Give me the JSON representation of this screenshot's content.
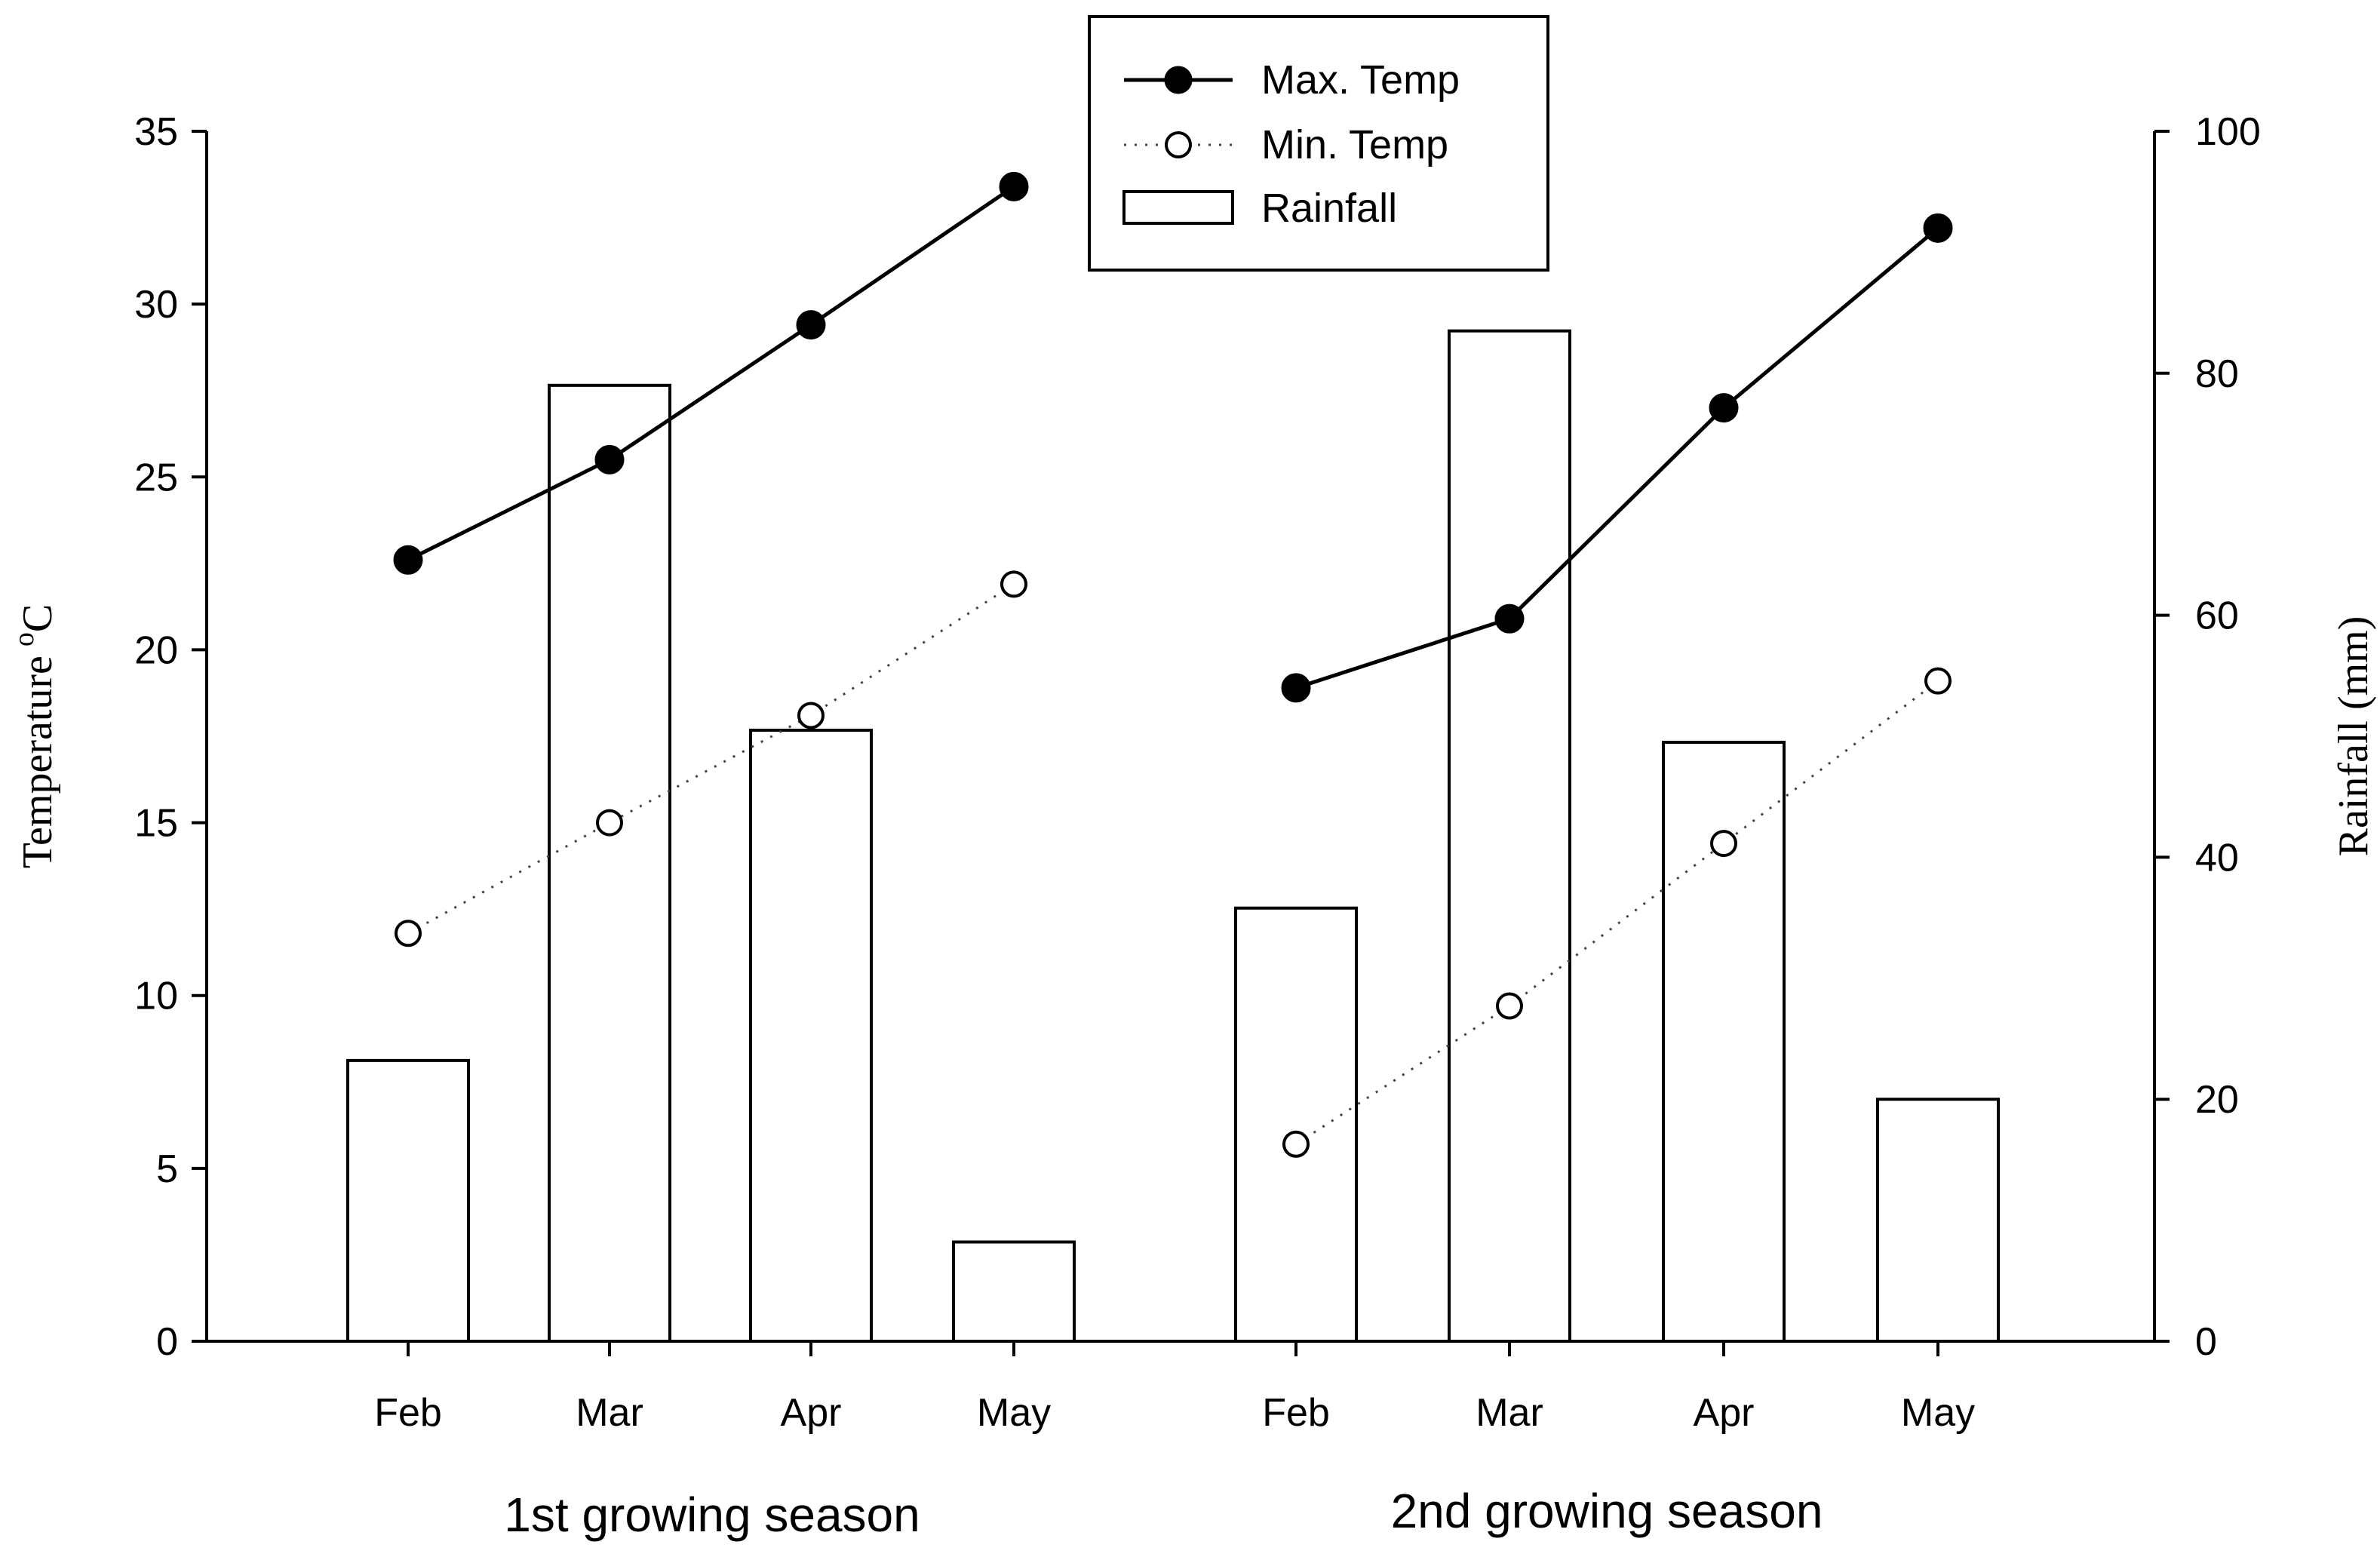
{
  "chart_data": {
    "type": "bar+line",
    "title": "",
    "groups": [
      {
        "name": "1st growing season",
        "categories": [
          "Feb",
          "Mar",
          "Apr",
          "May"
        ],
        "max_temp": [
          22.6,
          25.5,
          29.4,
          33.4
        ],
        "min_temp": [
          11.8,
          15.0,
          18.1,
          21.9
        ],
        "rainfall": [
          23.2,
          79.0,
          50.5,
          8.2
        ]
      },
      {
        "name": "2nd growing season",
        "categories": [
          "Feb",
          "Mar",
          "Apr",
          "May"
        ],
        "max_temp": [
          18.9,
          20.9,
          27.0,
          32.2
        ],
        "min_temp": [
          5.7,
          9.7,
          14.4,
          19.1
        ],
        "rainfall": [
          35.8,
          83.5,
          49.5,
          20.0
        ]
      }
    ],
    "series": [
      {
        "name": "Max. Temp",
        "axis": "left",
        "style": "solid line, filled circle markers"
      },
      {
        "name": "Min. Temp",
        "axis": "left",
        "style": "dotted line, open circle markers"
      },
      {
        "name": "Rainfall",
        "axis": "right",
        "style": "open bars"
      }
    ],
    "left_axis": {
      "label": "Temperature",
      "label_superscript": "o",
      "label_unit": "C",
      "ylim": [
        0,
        35
      ],
      "ticks": [
        "0",
        "5",
        "10",
        "15",
        "20",
        "25",
        "30",
        "35"
      ]
    },
    "right_axis": {
      "label": "Rainfall (mm)",
      "ylim": [
        0,
        100
      ],
      "ticks": [
        "0",
        "20",
        "40",
        "60",
        "80",
        "100"
      ]
    },
    "grid": false,
    "legend_position": "top-center"
  }
}
